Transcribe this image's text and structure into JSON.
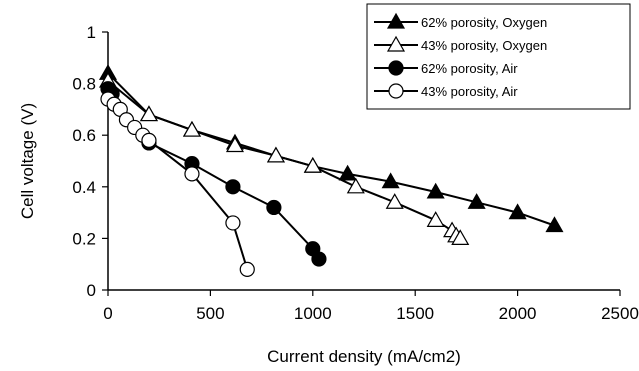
{
  "chart_data": {
    "type": "line",
    "xlabel": "Current density (mA/cm2)",
    "ylabel": "Cell voltage (V)",
    "xlim": [
      0,
      2500
    ],
    "ylim": [
      0,
      1
    ],
    "x_ticks": [
      0,
      500,
      1000,
      1500,
      2000,
      2500
    ],
    "y_ticks": [
      0,
      0.2,
      0.4,
      0.6,
      0.8,
      1
    ],
    "grid": false,
    "legend_position": "top-right",
    "series": [
      {
        "name": "62% porosity, Oxygen",
        "marker": "triangle",
        "fill": "filled",
        "x": [
          0,
          200,
          410,
          620,
          820,
          1000,
          1170,
          1380,
          1600,
          1800,
          2000,
          2180
        ],
        "y": [
          0.84,
          0.68,
          0.62,
          0.57,
          0.52,
          0.48,
          0.45,
          0.42,
          0.38,
          0.34,
          0.3,
          0.25
        ]
      },
      {
        "name": "43% porosity, Oxygen",
        "marker": "triangle",
        "fill": "open",
        "x": [
          0,
          200,
          410,
          620,
          820,
          1000,
          1210,
          1400,
          1600,
          1680,
          1700,
          1720
        ],
        "y": [
          0.81,
          0.68,
          0.62,
          0.56,
          0.52,
          0.48,
          0.4,
          0.34,
          0.27,
          0.23,
          0.21,
          0.2
        ]
      },
      {
        "name": "62% porosity, Air",
        "marker": "circle",
        "fill": "filled",
        "x": [
          0,
          20,
          200,
          410,
          610,
          810,
          1000,
          1030
        ],
        "y": [
          0.78,
          0.76,
          0.57,
          0.49,
          0.4,
          0.32,
          0.16,
          0.12
        ]
      },
      {
        "name": "43% porosity, Air",
        "marker": "circle",
        "fill": "open",
        "x": [
          0,
          30,
          60,
          90,
          130,
          170,
          200,
          410,
          610,
          680
        ],
        "y": [
          0.74,
          0.72,
          0.7,
          0.66,
          0.63,
          0.6,
          0.58,
          0.45,
          0.26,
          0.08
        ]
      }
    ]
  }
}
